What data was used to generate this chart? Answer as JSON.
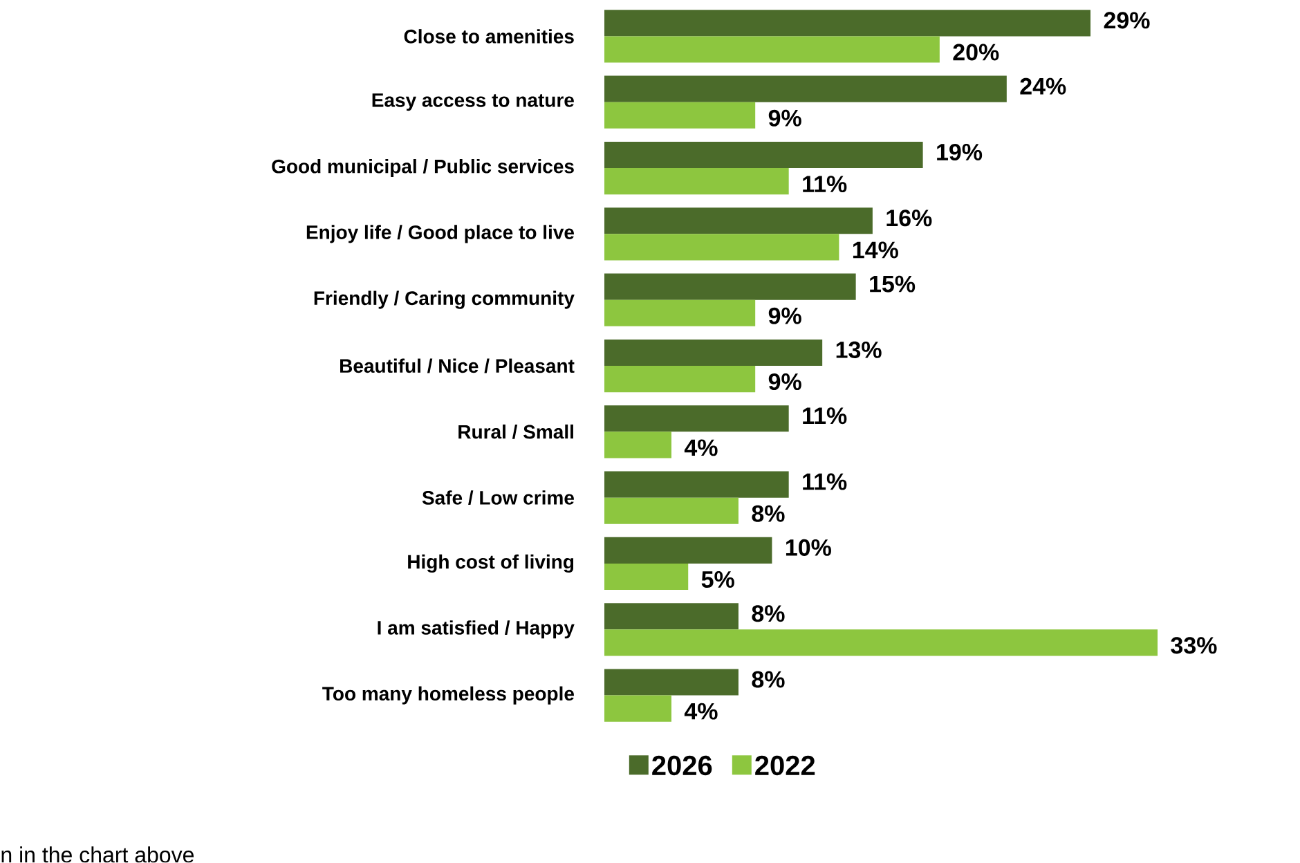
{
  "chart_data": {
    "type": "bar",
    "orientation": "horizontal",
    "categories": [
      "Close to amenities",
      "Easy access to nature",
      "Good municipal / Public services",
      "Enjoy life / Good place to live",
      "Friendly / Caring community",
      "Beautiful / Nice / Pleasant",
      "Rural / Small",
      "Safe / Low crime",
      "High cost of living",
      "I am satisfied / Happy",
      "Too many homeless people"
    ],
    "series": [
      {
        "name": "2026",
        "color": "#4b6b2a",
        "values": [
          29,
          24,
          19,
          16,
          15,
          13,
          11,
          11,
          10,
          8,
          8
        ],
        "value_labels": [
          "29%",
          "24%",
          "19%",
          "16%",
          "15%",
          "13%",
          "11%",
          "11%",
          "10%",
          "8%",
          "8%"
        ]
      },
      {
        "name": "2022",
        "color": "#8dc63f",
        "values": [
          20,
          9,
          11,
          14,
          9,
          9,
          4,
          8,
          5,
          33,
          4
        ],
        "value_labels": [
          "20%",
          "9%",
          "11%",
          "14%",
          "9%",
          "9%",
          "4%",
          "8%",
          "5%",
          "33%",
          "4%"
        ]
      }
    ],
    "legend": "bottom",
    "annotations": [
      "n in the chart above"
    ]
  }
}
